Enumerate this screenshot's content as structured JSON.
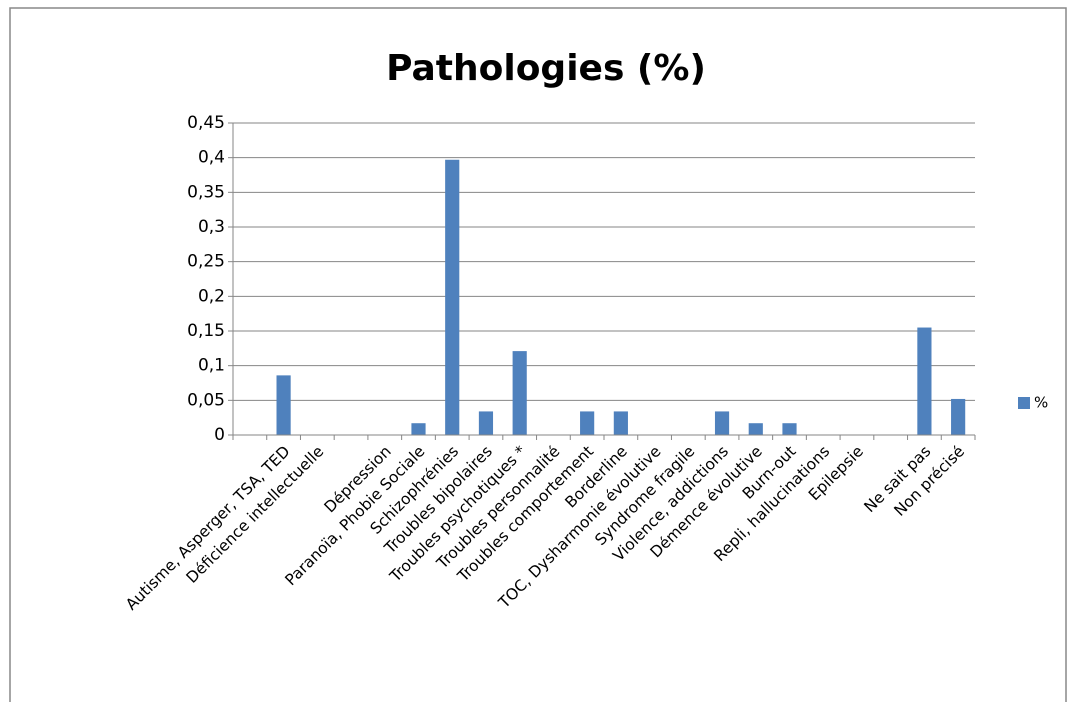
{
  "chart_data": {
    "type": "bar",
    "title": "Pathologies (%)",
    "categories": [
      null,
      "Autisme, Asperger, TSA, TED",
      "Déficience intellectuelle",
      null,
      "Dépression",
      "Paranoïa, Phobie Sociale",
      "Schizophrénies",
      "Troubles bipolaires",
      "Troubles psychotiques *",
      "Troubles personnalité",
      "Troubles comportement",
      "Borderline",
      "TOC, Dysharmonie évolutive",
      "Syndrome fragile",
      "Violence, addictions",
      "Démence évolutive",
      "Burn-out",
      "Repli, hallucinations",
      "Epilepsie",
      null,
      "Ne sait pas",
      "Non précisé"
    ],
    "series": [
      {
        "name": "%",
        "color": "#4f81bd",
        "values": [
          0,
          0.086,
          0,
          0,
          0,
          0.017,
          0.397,
          0.034,
          0.121,
          0,
          0.034,
          0.034,
          0,
          0,
          0.034,
          0.017,
          0.017,
          0,
          0,
          0,
          0.155,
          0.052
        ]
      }
    ],
    "ylim": [
      0,
      0.45
    ],
    "yticks": [
      0,
      {
        "value": 0.05,
        "label": "0,05"
      },
      {
        "value": 0.1,
        "label": "0,1"
      },
      {
        "value": 0.15,
        "label": "0,15"
      },
      {
        "value": 0.2,
        "label": "0,2"
      },
      {
        "value": 0.25,
        "label": "0,25"
      },
      {
        "value": 0.3,
        "label": "0,3"
      },
      {
        "value": 0.35,
        "label": "0,35"
      },
      {
        "value": 0.4,
        "label": "0,4"
      },
      {
        "value": 0.45,
        "label": "0,45"
      }
    ],
    "grid": true,
    "legend": "right"
  }
}
